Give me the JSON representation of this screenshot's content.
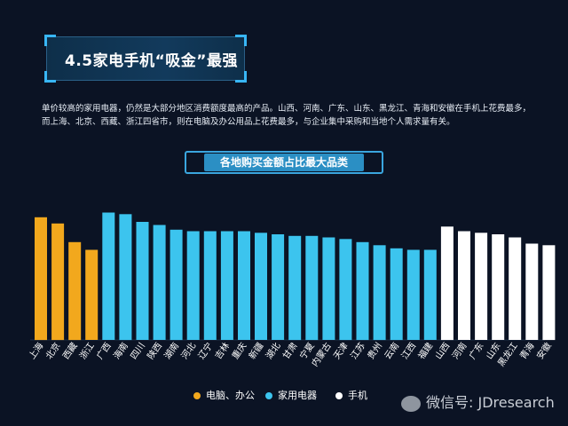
{
  "header": {
    "title": "4.5家电手机“吸金”最强"
  },
  "description": "单价较高的家用电器，仍然是大部分地区消费额度最高的产品。山西、河南、广东、山东、黑龙江、青海和安徽在手机上花费最多，而上海、北京、西藏、浙江四省市，则在电脑及办公用品上花费最多，与企业集中采购和当地个人需求量有关。",
  "chart_data": {
    "type": "bar",
    "title": "各地购买金额占比最大品类",
    "categories": [
      "上海",
      "北京",
      "西藏",
      "浙江",
      "广西",
      "海南",
      "四川",
      "陕西",
      "湖南",
      "河北",
      "辽宁",
      "吉林",
      "重庆",
      "新疆",
      "湖北",
      "甘肃",
      "宁夏",
      "内蒙古",
      "天津",
      "江苏",
      "贵州",
      "云南",
      "江西",
      "福建",
      "山西",
      "河南",
      "广东",
      "山东",
      "黑龙江",
      "青海",
      "安徽"
    ],
    "values": [
      79,
      75,
      63,
      58,
      82,
      81,
      76,
      74,
      71,
      70,
      70,
      70,
      70,
      69,
      68,
      67,
      67,
      66,
      65,
      63,
      61,
      59,
      58,
      58,
      73,
      70,
      69,
      68,
      66,
      62,
      61
    ],
    "groups": [
      "电脑、办公",
      "电脑、办公",
      "电脑、办公",
      "电脑、办公",
      "家用电器",
      "家用电器",
      "家用电器",
      "家用电器",
      "家用电器",
      "家用电器",
      "家用电器",
      "家用电器",
      "家用电器",
      "家用电器",
      "家用电器",
      "家用电器",
      "家用电器",
      "家用电器",
      "家用电器",
      "家用电器",
      "家用电器",
      "家用电器",
      "家用电器",
      "家用电器",
      "手机",
      "手机",
      "手机",
      "手机",
      "手机",
      "手机",
      "手机"
    ],
    "ylim": [
      0,
      100
    ],
    "xlabel": "",
    "ylabel": "",
    "legend": [
      {
        "name": "电脑、办公",
        "color": "#f2a81d"
      },
      {
        "name": "家用电器",
        "color": "#3cc4ee"
      },
      {
        "name": "手机",
        "color": "#ffffff"
      }
    ],
    "colors": {
      "电脑、办公": "#f2a81d",
      "家用电器": "#3cc4ee",
      "手机": "#ffffff"
    },
    "grid": false,
    "legend_position": "bottom-left"
  },
  "watermark": "微信号: JDresearch"
}
